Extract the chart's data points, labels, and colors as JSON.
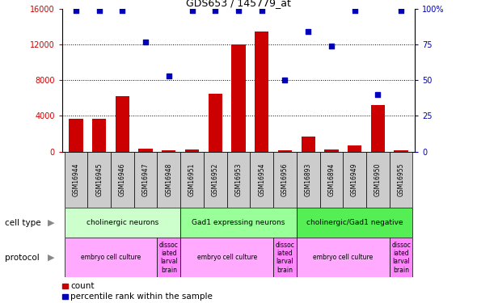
{
  "title": "GDS653 / 145779_at",
  "samples": [
    "GSM16944",
    "GSM16945",
    "GSM16946",
    "GSM16947",
    "GSM16948",
    "GSM16951",
    "GSM16952",
    "GSM16953",
    "GSM16954",
    "GSM16956",
    "GSM16893",
    "GSM16894",
    "GSM16949",
    "GSM16950",
    "GSM16955"
  ],
  "counts": [
    3700,
    3700,
    6200,
    350,
    120,
    200,
    6500,
    12000,
    13500,
    100,
    1700,
    250,
    650,
    5200,
    150
  ],
  "percentile": [
    99,
    99,
    99,
    77,
    53,
    99,
    99,
    99,
    99,
    50,
    84,
    74,
    99,
    40,
    99
  ],
  "left_ylim": [
    0,
    16000
  ],
  "right_ylim": [
    0,
    100
  ],
  "left_yticks": [
    0,
    4000,
    8000,
    12000,
    16000
  ],
  "right_yticks": [
    0,
    25,
    50,
    75,
    100
  ],
  "right_yticklabels": [
    "0",
    "25",
    "50",
    "75",
    "100%"
  ],
  "bar_color": "#cc0000",
  "dot_color": "#0000bb",
  "cell_type_groups": [
    {
      "label": "cholinergic neurons",
      "start": 0,
      "end": 4,
      "color": "#ccffcc"
    },
    {
      "label": "Gad1 expressing neurons",
      "start": 5,
      "end": 9,
      "color": "#99ff99"
    },
    {
      "label": "cholinergic/Gad1 negative",
      "start": 10,
      "end": 14,
      "color": "#55ee55"
    }
  ],
  "protocol_groups": [
    {
      "label": "embryo cell culture",
      "start": 0,
      "end": 3,
      "color": "#ffaaff"
    },
    {
      "label": "dissoc\niated\nlarval\nbrain",
      "start": 4,
      "end": 4,
      "color": "#ff88ff"
    },
    {
      "label": "embryo cell culture",
      "start": 5,
      "end": 8,
      "color": "#ffaaff"
    },
    {
      "label": "dissoc\niated\nlarval\nbrain",
      "start": 9,
      "end": 9,
      "color": "#ff88ff"
    },
    {
      "label": "embryo cell culture",
      "start": 10,
      "end": 13,
      "color": "#ffaaff"
    },
    {
      "label": "dissoc\niated\nlarval\nbrain",
      "start": 14,
      "end": 14,
      "color": "#ff88ff"
    }
  ],
  "tick_bg_color": "#cccccc",
  "cell_type_row_label": "cell type",
  "protocol_row_label": "protocol",
  "legend_count_label": "count",
  "legend_pct_label": "percentile rank within the sample",
  "figsize": [
    5.9,
    3.75
  ],
  "dpi": 100
}
